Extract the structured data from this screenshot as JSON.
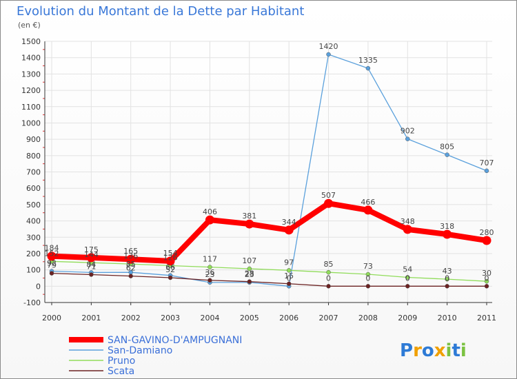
{
  "chart_data": {
    "type": "line",
    "title": "Evolution du Montant de la Dette par Habitant",
    "subtitle": "(en €)",
    "categories": [
      "2000",
      "2001",
      "2002",
      "2003",
      "2004",
      "2005",
      "2006",
      "2007",
      "2008",
      "2009",
      "2010",
      "2011"
    ],
    "ylim": [
      -100,
      1500
    ],
    "yticks": [
      -100,
      0,
      100,
      200,
      300,
      400,
      500,
      600,
      700,
      800,
      900,
      1000,
      1100,
      1200,
      1300,
      1400,
      1500
    ],
    "grid": true,
    "legend_position": "bottom-left",
    "series": [
      {
        "name": "SAN-GAVINO-D'AMPUGNANI",
        "color": "#ff0000",
        "values": [
          184,
          175,
          165,
          154,
          406,
          381,
          344,
          507,
          466,
          348,
          318,
          280
        ],
        "thick": true
      },
      {
        "name": "San-Damiano",
        "color": "#5aa0dc",
        "values": [
          92,
          84,
          85,
          66,
          23,
          23,
          0,
          1420,
          1335,
          902,
          805,
          707
        ],
        "thick": false
      },
      {
        "name": "Pruno",
        "color": "#90dc5a",
        "values": [
          152,
          144,
          136,
          126,
          117,
          107,
          97,
          85,
          73,
          54,
          43,
          30
        ],
        "thick": false
      },
      {
        "name": "Scata",
        "color": "#6b2222",
        "values": [
          79,
          71,
          62,
          52,
          36,
          28,
          15,
          0,
          0,
          0,
          0,
          0
        ],
        "thick": false
      }
    ]
  },
  "logo": {
    "text": "Proxiti"
  }
}
